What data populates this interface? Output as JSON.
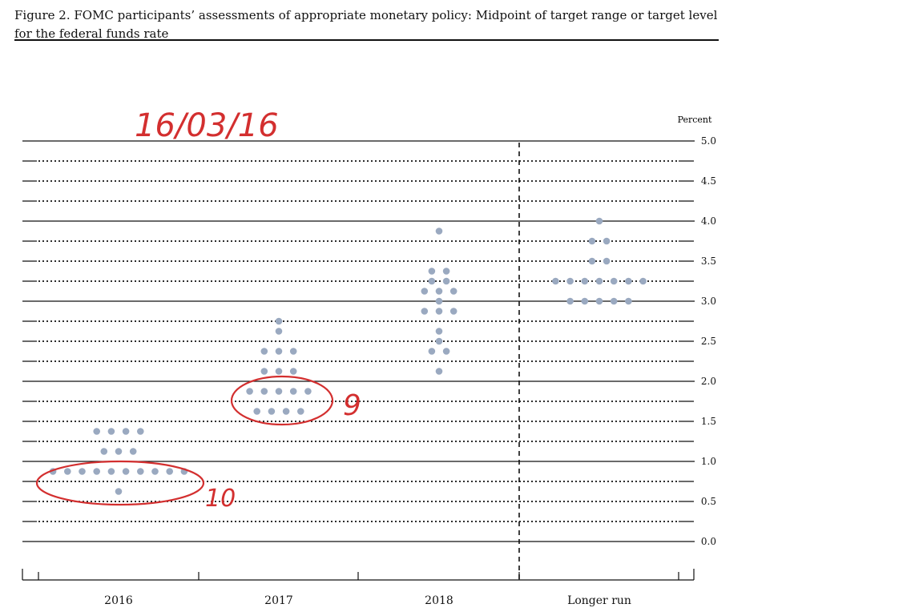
{
  "caption": {
    "text": "Figure 2. FOMC participants’ assessments of appropriate monetary policy: Midpoint of target range or target level for the federal funds rate"
  },
  "annotations": {
    "date": "16/03/16",
    "count_2017": "9",
    "count_2016": "10",
    "ink_color": "#d32f2f"
  },
  "chart_data": {
    "type": "scatter",
    "unit_label": "Percent",
    "ylim": [
      0,
      5
    ],
    "yticks": [
      "0.0",
      "0.5",
      "1.0",
      "1.5",
      "2.0",
      "2.5",
      "3.0",
      "3.5",
      "4.0",
      "4.5",
      "5.0"
    ],
    "categories": [
      "2016",
      "2017",
      "2018",
      "Longer run"
    ],
    "dot_color": "#9aa9c0",
    "groups": [
      {
        "category": "2016",
        "points": [
          {
            "y": 1.375,
            "n": 4
          },
          {
            "y": 1.125,
            "n": 3
          },
          {
            "y": 0.875,
            "n": 10
          },
          {
            "y": 0.625,
            "n": 1
          }
        ]
      },
      {
        "category": "2017",
        "points": [
          {
            "y": 2.75,
            "n": 1
          },
          {
            "y": 2.625,
            "n": 1
          },
          {
            "y": 2.375,
            "n": 3
          },
          {
            "y": 2.125,
            "n": 3
          },
          {
            "y": 1.875,
            "n": 5
          },
          {
            "y": 1.625,
            "n": 4
          }
        ]
      },
      {
        "category": "2018",
        "points": [
          {
            "y": 3.875,
            "n": 1
          },
          {
            "y": 3.375,
            "n": 2
          },
          {
            "y": 3.25,
            "n": 2
          },
          {
            "y": 3.125,
            "n": 3
          },
          {
            "y": 3.0,
            "n": 1
          },
          {
            "y": 2.875,
            "n": 3
          },
          {
            "y": 2.625,
            "n": 1
          },
          {
            "y": 2.5,
            "n": 1
          },
          {
            "y": 2.375,
            "n": 2
          },
          {
            "y": 2.125,
            "n": 1
          }
        ]
      },
      {
        "category": "Longer run",
        "points": [
          {
            "y": 4.0,
            "n": 1
          },
          {
            "y": 3.75,
            "n": 2
          },
          {
            "y": 3.5,
            "n": 2
          },
          {
            "y": 3.25,
            "n": 7
          },
          {
            "y": 3.0,
            "n": 5
          }
        ]
      }
    ]
  }
}
